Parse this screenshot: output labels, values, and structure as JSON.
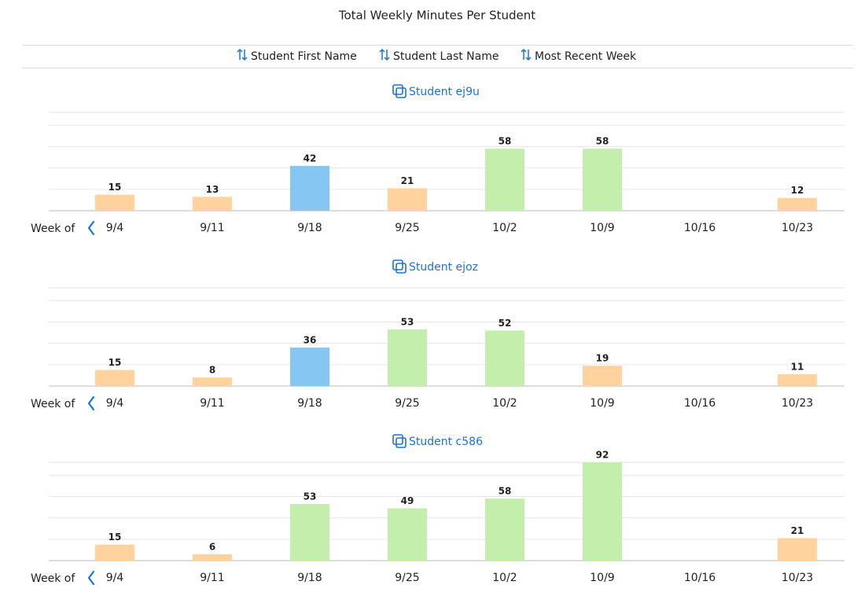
{
  "title": "Total Weekly Minutes Per Student",
  "sort_options": [
    "Student First Name",
    "Student Last Name",
    "Most Recent Week"
  ],
  "chart_data": [
    {
      "type": "bar",
      "title": "Student ej9u",
      "x_label": "Week of",
      "categories": [
        "9/4",
        "9/11",
        "9/18",
        "9/25",
        "10/2",
        "10/9",
        "10/16",
        "10/23"
      ],
      "values": [
        15,
        13,
        42,
        21,
        58,
        58,
        null,
        12
      ],
      "colors": [
        "#ffd29e",
        "#ffd29e",
        "#85c6f2",
        "#ffd29e",
        "#c3eeac",
        "#c3eeac",
        null,
        "#ffd29e"
      ],
      "ylim": [
        0,
        92
      ],
      "yticks": [
        0,
        20,
        40,
        60,
        80
      ],
      "grid": true
    },
    {
      "type": "bar",
      "title": "Student ejoz",
      "x_label": "Week of",
      "categories": [
        "9/4",
        "9/11",
        "9/18",
        "9/25",
        "10/2",
        "10/9",
        "10/16",
        "10/23"
      ],
      "values": [
        15,
        8,
        36,
        53,
        52,
        19,
        null,
        11
      ],
      "colors": [
        "#ffd29e",
        "#ffd29e",
        "#85c6f2",
        "#c3eeac",
        "#c3eeac",
        "#ffd29e",
        null,
        "#ffd29e"
      ],
      "ylim": [
        0,
        92
      ],
      "yticks": [
        0,
        20,
        40,
        60,
        80
      ],
      "grid": true
    },
    {
      "type": "bar",
      "title": "Student c586",
      "x_label": "Week of",
      "categories": [
        "9/4",
        "9/11",
        "9/18",
        "9/25",
        "10/2",
        "10/9",
        "10/16",
        "10/23"
      ],
      "values": [
        15,
        6,
        53,
        49,
        58,
        92,
        null,
        21
      ],
      "colors": [
        "#ffd29e",
        "#ffd29e",
        "#c3eeac",
        "#c3eeac",
        "#c3eeac",
        "#c3eeac",
        null,
        "#ffd29e"
      ],
      "ylim": [
        0,
        92
      ],
      "yticks": [
        0,
        20,
        40,
        60,
        80
      ],
      "grid": true
    }
  ]
}
